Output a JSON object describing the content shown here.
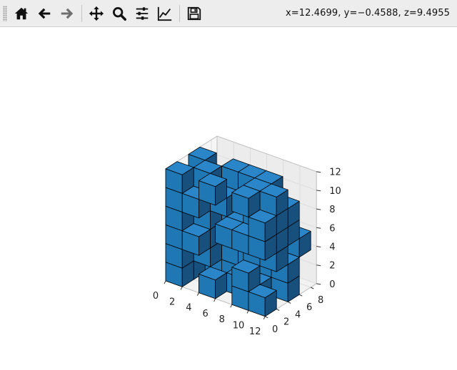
{
  "toolbar": {
    "buttons": [
      {
        "name": "home-button",
        "icon": "home-icon"
      },
      {
        "name": "back-button",
        "icon": "arrow-left-icon"
      },
      {
        "name": "forward-button",
        "icon": "arrow-right-icon"
      },
      {
        "name": "pan-button",
        "icon": "move-icon"
      },
      {
        "name": "zoom-button",
        "icon": "magnifier-icon"
      },
      {
        "name": "configure-subplots-button",
        "icon": "sliders-icon"
      },
      {
        "name": "edit-axis-button",
        "icon": "line-chart-icon"
      },
      {
        "name": "save-button",
        "icon": "floppy-disk-icon"
      }
    ],
    "coordinates": "x=12.4699, y=−0.4588, z=9.4955"
  },
  "chart_data": {
    "type": "voxels",
    "x_ticks": [
      "0",
      "2",
      "4",
      "6",
      "8",
      "10",
      "12"
    ],
    "y_ticks": [
      "0",
      "2",
      "4",
      "6",
      "8"
    ],
    "z_ticks": [
      "0",
      "2",
      "4",
      "6",
      "8",
      "10",
      "12"
    ],
    "xlim": [
      0,
      12
    ],
    "ylim": [
      0,
      9
    ],
    "zlim": [
      0,
      12
    ],
    "voxel_color": "#1f77b4",
    "edge_color": "#000000",
    "grid": true
  }
}
